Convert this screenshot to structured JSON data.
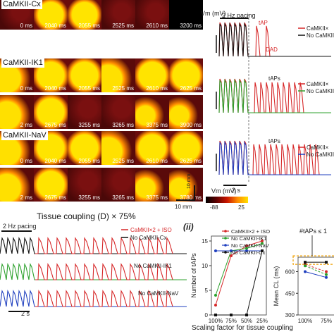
{
  "panel_A": {
    "rows": [
      {
        "title": "CaMKII-Cx",
        "tiles": [
          "0 ms",
          "2040 ms",
          "2055 ms",
          "2525 ms",
          "2610 ms",
          "3200 ms"
        ],
        "cell_label": "cell"
      },
      {
        "title": "CaMKII-IK1",
        "tiles": [
          "0 ms",
          "2040 ms",
          "2055 ms",
          "2525 ms",
          "2610 ms",
          "2625 ms",
          "2 ms",
          "2675 ms",
          "3255 ms",
          "3265 ms",
          "3375 ms",
          "3900 ms"
        ]
      },
      {
        "title": "CaMKII-NaV",
        "tiles": [
          "0 ms",
          "2040 ms",
          "2055 ms",
          "2525 ms",
          "2610 ms",
          "2625 ms",
          "2 ms",
          "2675 ms",
          "3255 ms",
          "3265 ms",
          "3375 ms",
          "3780 ms"
        ]
      }
    ],
    "scale_bar": "10 mm",
    "colorbar": {
      "title": "Vm (mV)",
      "min": "-88",
      "max": "25"
    }
  },
  "panel_B": {
    "vm_label": "Vm (mV)",
    "pacing_label": "2 Hz pacing",
    "time_scale": "2 s",
    "trace_groups": [
      {
        "annotations": [
          "tAP",
          "DAD"
        ],
        "legend": [
          "CaMKII×",
          "No CaMKII"
        ],
        "colors": [
          "#d62728",
          "#111111"
        ]
      },
      {
        "annotations": [
          "tAPs"
        ],
        "legend": [
          "CaMKII×",
          "No CaMKII"
        ],
        "colors": [
          "#d62728",
          "#2ca02c"
        ]
      },
      {
        "annotations": [
          "tAPs"
        ],
        "legend": [
          "CaMKII×",
          "No CaMKII"
        ],
        "colors": [
          "#d62728",
          "#1f3fbf"
        ]
      }
    ]
  },
  "panel_C": {
    "title": "Tissue coupling (D) × 75%",
    "pacing_label": "2 Hz pacing",
    "time_scale": "2 s",
    "legend": [
      {
        "label": "CaMKII×2 + ISO",
        "color": "#d62728"
      },
      {
        "label": "No CaMKII-Cx",
        "color": "#111111"
      },
      {
        "label": "No CaMKII-IK1",
        "color": "#2ca02c"
      },
      {
        "label": "No CaMKII-NaV",
        "color": "#1f3fbf"
      }
    ]
  },
  "panel_D": {
    "tag": "(ii)",
    "legend": [
      {
        "label": "CaMKII×2 + ISO",
        "color": "#d62728"
      },
      {
        "label": "No CaMKII-IK1",
        "color": "#2ca02c"
      },
      {
        "label": "No CaMKII-NaV",
        "color": "#1f3fbf"
      },
      {
        "label": "No CaMKII-Cx",
        "color": "#111111"
      }
    ],
    "xlabel": "Scaling factor for tissue coupling",
    "x_ticks": [
      "100%",
      "75%",
      "50%",
      "25%"
    ],
    "left_plot": {
      "ylabel": "Number of tAPs",
      "y_ticks": [
        "0",
        "5",
        "10",
        "15"
      ]
    },
    "right_plot": {
      "ylabel": "Mean CL (ms)",
      "y_ticks": [
        "300",
        "450",
        "600"
      ],
      "annotation": "#tAPs ≤ 1",
      "x_ticks": [
        "100%",
        "75%"
      ]
    }
  },
  "chart_data": [
    {
      "type": "line",
      "xlabel": "Scaling factor for tissue coupling",
      "ylabel": "Number of tAPs",
      "categories": [
        "100%",
        "75%",
        "50%",
        "25%"
      ],
      "ylim": [
        0,
        16
      ],
      "series": [
        {
          "name": "CaMKII×2 + ISO",
          "color": "#d62728",
          "values": [
            2,
            12,
            14,
            15
          ]
        },
        {
          "name": "No CaMKII-IK1",
          "color": "#2ca02c",
          "values": [
            4,
            13,
            13.5,
            14.5
          ]
        },
        {
          "name": "No CaMKII-NaV",
          "color": "#1f3fbf",
          "values": [
            13,
            13,
            13,
            13
          ]
        },
        {
          "name": "No CaMKII-Cx",
          "color": "#111111",
          "values": [
            0,
            0,
            0,
            13
          ]
        }
      ]
    },
    {
      "type": "line",
      "ylabel": "Mean CL (ms)",
      "categories": [
        "100%",
        "75%"
      ],
      "ylim": [
        300,
        700
      ],
      "series": [
        {
          "name": "CaMKII×2 + ISO",
          "color": "#d62728",
          "values": [
            650,
            600
          ]
        },
        {
          "name": "No CaMKII-IK1",
          "color": "#2ca02c",
          "values": [
            640,
            580
          ]
        },
        {
          "name": "No CaMKII-NaV",
          "color": "#1f3fbf",
          "values": [
            600,
            560
          ]
        },
        {
          "name": "No CaMKII-Cx",
          "color": "#111111",
          "values": [
            665,
            665
          ]
        }
      ]
    }
  ]
}
